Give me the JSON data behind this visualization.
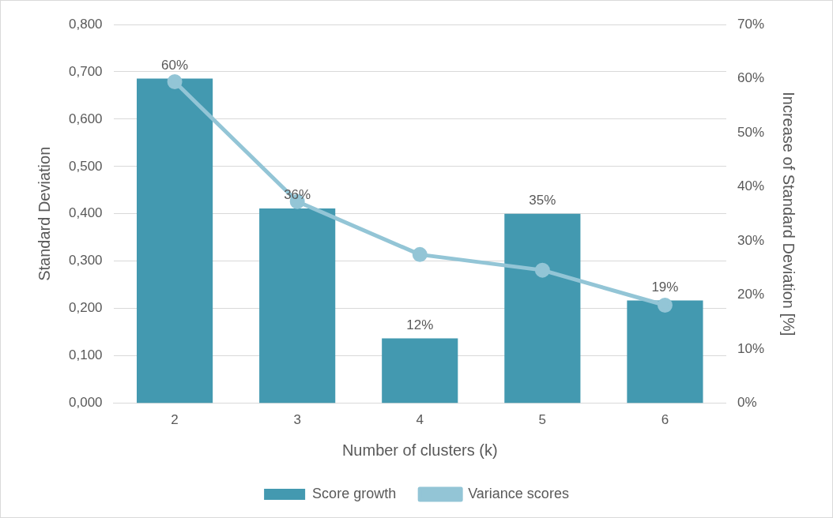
{
  "chart_data": {
    "type": "bar",
    "xlabel": "Number of clusters (k)",
    "ylabel": "Standard Deviation",
    "y2label": "Increase of Standard Deviation [%]",
    "categories": [
      "2",
      "3",
      "4",
      "5",
      "6"
    ],
    "series": [
      {
        "name": "Score growth",
        "type": "bar",
        "axis": "y2",
        "color": "#4399b0",
        "values": [
          60,
          36,
          12,
          35,
          19
        ],
        "value_labels": [
          "60%",
          "36%",
          "12%",
          "35%",
          "19%"
        ]
      },
      {
        "name": "Variance scores",
        "type": "line",
        "axis": "y",
        "color": "#93c5d6",
        "marker": "circle",
        "values": [
          0.679,
          0.426,
          0.314,
          0.281,
          0.207
        ]
      }
    ],
    "ylim": [
      0,
      0.8
    ],
    "yticks": [
      {
        "value": 0,
        "label": "0,000"
      },
      {
        "value": 0.1,
        "label": "0,100"
      },
      {
        "value": 0.2,
        "label": "0,200"
      },
      {
        "value": 0.3,
        "label": "0,300"
      },
      {
        "value": 0.4,
        "label": "0,400"
      },
      {
        "value": 0.5,
        "label": "0,500"
      },
      {
        "value": 0.6,
        "label": "0,600"
      },
      {
        "value": 0.7,
        "label": "0,700"
      },
      {
        "value": 0.8,
        "label": "0,800"
      }
    ],
    "y2lim": [
      0,
      70
    ],
    "y2ticks": [
      {
        "value": 0,
        "label": "0%"
      },
      {
        "value": 10,
        "label": "10%"
      },
      {
        "value": 20,
        "label": "20%"
      },
      {
        "value": 30,
        "label": "30%"
      },
      {
        "value": 40,
        "label": "40%"
      },
      {
        "value": 50,
        "label": "50%"
      },
      {
        "value": 60,
        "label": "60%"
      },
      {
        "value": 70,
        "label": "70%"
      }
    ],
    "grid": "y",
    "legend": "bottom"
  }
}
